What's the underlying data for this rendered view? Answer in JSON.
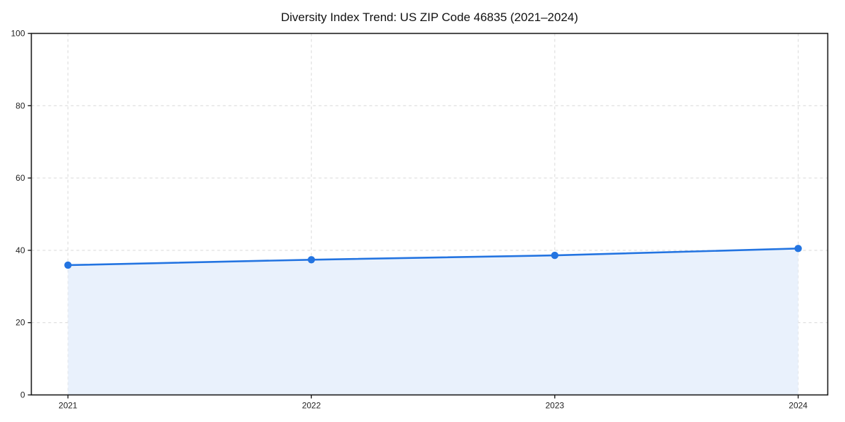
{
  "page": {
    "background": "#ffffff"
  },
  "chart_data": {
    "type": "line",
    "title": "Diversity Index Trend: US ZIP Code 46835 (2021–2024)",
    "x": [
      2021,
      2022,
      2023,
      2024
    ],
    "x_tick_labels": [
      "2021",
      "2022",
      "2023",
      "2024"
    ],
    "series": [
      {
        "name": "Diversity Index",
        "values": [
          35.9,
          37.4,
          38.6,
          40.5
        ]
      }
    ],
    "xlabel": "",
    "ylabel": "",
    "ylim": [
      0,
      100
    ],
    "y_ticks": [
      0,
      20,
      40,
      60,
      80,
      100
    ],
    "grid": "dashed",
    "grid_axes": "both",
    "legend": "none",
    "marker": "circle",
    "area_fill": true,
    "colors": {
      "line": "#2374e1",
      "marker": "#2374e1",
      "fill": "#e9f1fc",
      "grid": "#dcdcdc",
      "axis": "#1a1a1a",
      "title_text": "#111111",
      "tick_text": "#222222"
    }
  }
}
